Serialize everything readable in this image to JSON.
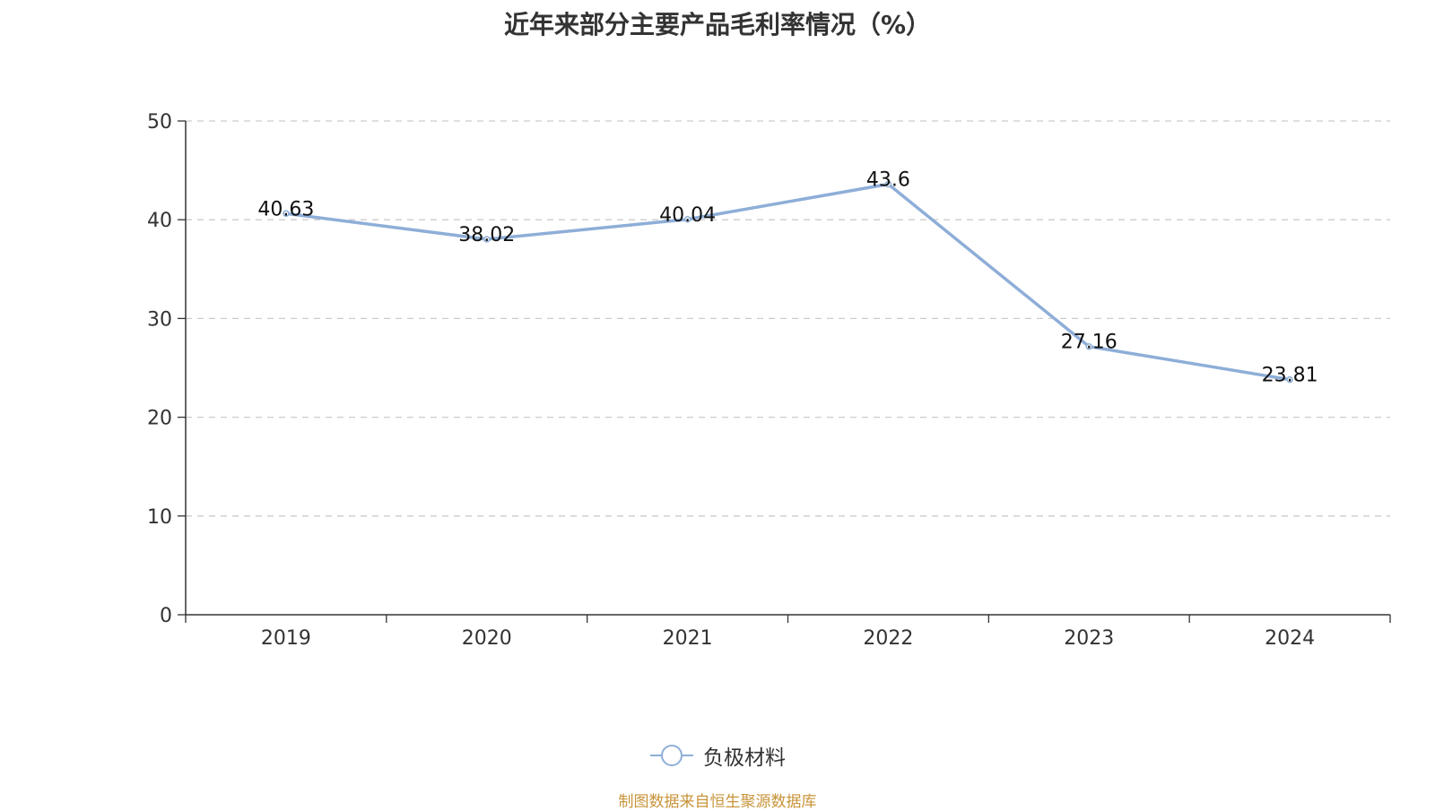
{
  "chart_data": {
    "type": "line",
    "title": "近年来部分主要产品毛利率情况（%）",
    "categories": [
      "2019",
      "2020",
      "2021",
      "2022",
      "2023",
      "2024"
    ],
    "series": [
      {
        "name": "负极材料",
        "values": [
          40.63,
          38.02,
          40.04,
          43.6,
          27.16,
          23.81
        ],
        "labels": [
          "40.63",
          "38.02",
          "40.04",
          "43.6",
          "27.16",
          "23.81"
        ]
      }
    ],
    "ylim": [
      0,
      50
    ],
    "yticks": [
      "0",
      "10",
      "20",
      "30",
      "40",
      "50"
    ],
    "xlabel": "",
    "ylabel": "",
    "grid": "horizontal dashed",
    "legend_position": "bottom-center",
    "colors": {
      "series": "#8eaed8",
      "grid": "#cccccc",
      "axis": "#333333",
      "text": "#333333",
      "source": "#c8943a"
    }
  },
  "source_note": "制图数据来自恒生聚源数据库"
}
